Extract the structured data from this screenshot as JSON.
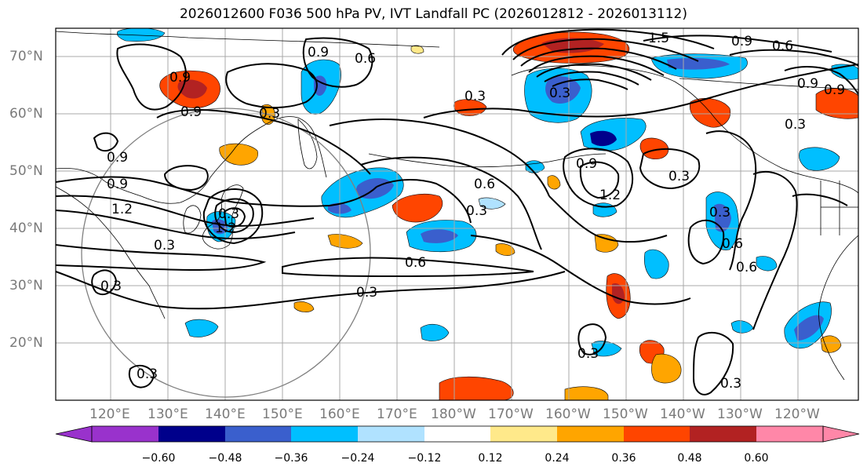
{
  "title": "2026012600 F036 500 hPa PV, IVT Landfall PC (2026012812 - 2026013112)",
  "lat_labels": [
    "70°N",
    "60°N",
    "50°N",
    "40°N",
    "30°N",
    "20°N"
  ],
  "lon_labels": [
    "120°E",
    "130°E",
    "140°E",
    "150°E",
    "160°E",
    "170°E",
    "180°W",
    "170°W",
    "160°W",
    "150°W",
    "140°W",
    "130°W",
    "120°W"
  ],
  "contour_labels": [
    "0.9",
    "0.6",
    "1.5",
    "0.9",
    "0.6",
    "0.9",
    "0.9",
    "0.3",
    "0.3",
    "0.9",
    "0.9",
    "0.9",
    "0.9",
    "1.2",
    "1.2",
    "0.3",
    "0.3",
    "0.6",
    "0.9",
    "0.3",
    "0.6",
    "0.3",
    "0.6",
    "0.3",
    "0.6",
    "0.3",
    "0.3",
    "0.3",
    "0.3",
    "1.2",
    "0.3",
    "0.3",
    "0.3"
  ],
  "colorbar": {
    "ticks": [
      "−0.60",
      "−0.48",
      "−0.36",
      "−0.24",
      "−0.12",
      "0.12",
      "0.24",
      "0.36",
      "0.48",
      "0.60"
    ],
    "colors": [
      "#9932cc",
      "#00008b",
      "#3a5fcd",
      "#00bfff",
      "#b0e2ff",
      "#ffffff",
      "#ffe98a",
      "#ffa500",
      "#ff4500",
      "#b22222",
      "#ff87a8"
    ]
  }
}
